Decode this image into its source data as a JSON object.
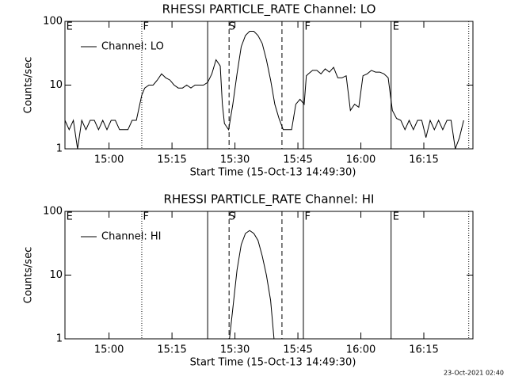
{
  "chart_data": [
    {
      "type": "line",
      "title": "RHESSI PARTICLE_RATE Channel: LO",
      "xlabel": "Start Time (15-Oct-13 14:49:30)",
      "ylabel": "Counts/sec",
      "log_y": true,
      "ylim": [
        1,
        100
      ],
      "yticks": [
        1,
        10,
        100
      ],
      "xlim": [
        0,
        97.2
      ],
      "xticks": [
        {
          "value": 10.5,
          "label": "15:00"
        },
        {
          "value": 25.5,
          "label": "15:15"
        },
        {
          "value": 40.5,
          "label": "15:30"
        },
        {
          "value": 55.5,
          "label": "15:45"
        },
        {
          "value": 70.5,
          "label": "16:00"
        },
        {
          "value": 85.5,
          "label": "16:15"
        }
      ],
      "vlines": [
        {
          "x": 18.3,
          "style": "dotted"
        },
        {
          "x": 34.0,
          "style": "solid"
        },
        {
          "x": 39.1,
          "style": "dashed"
        },
        {
          "x": 51.7,
          "style": "dashed"
        },
        {
          "x": 56.8,
          "style": "solid"
        },
        {
          "x": 77.7,
          "style": "solid"
        },
        {
          "x": 96.2,
          "style": "dotted"
        }
      ],
      "flags": [
        {
          "x": 0.3,
          "label": "E"
        },
        {
          "x": 18.6,
          "label": "F"
        },
        {
          "x": 39.0,
          "label": "S"
        },
        {
          "x": 57.1,
          "label": "F"
        },
        {
          "x": 78.1,
          "label": "E"
        }
      ],
      "x": [
        0,
        1,
        2,
        3,
        4,
        5,
        6,
        7,
        8,
        9,
        10,
        11,
        12,
        13,
        14,
        15,
        16,
        17,
        18.3,
        19,
        20,
        21,
        22,
        23,
        24,
        25,
        26,
        27,
        28,
        29,
        30,
        31,
        32,
        33,
        34,
        35,
        36,
        37,
        37.5,
        38,
        39,
        40,
        41,
        42,
        43,
        44,
        45,
        46,
        47,
        48,
        49,
        50,
        51,
        52,
        53,
        54,
        55,
        56,
        57,
        57.5,
        58,
        59,
        60,
        61,
        62,
        63,
        64,
        65,
        66,
        67,
        68,
        69,
        70,
        71,
        72,
        73,
        74,
        75,
        76,
        77,
        78,
        79,
        80,
        81,
        82,
        83,
        84,
        85,
        86,
        87,
        88,
        89,
        90,
        91,
        92,
        93,
        94,
        95
      ],
      "series": [
        {
          "name": "Channel: LO",
          "color": "#000000",
          "values": [
            2.8,
            2,
            2.8,
            1,
            2.8,
            2,
            2.8,
            2.8,
            2,
            2.8,
            2,
            2.8,
            2.8,
            2,
            2,
            2,
            2.8,
            2.8,
            7,
            9,
            10,
            10,
            12,
            15,
            13,
            12,
            10,
            9,
            9,
            10,
            9,
            10,
            10,
            10,
            11,
            15,
            25,
            20,
            5,
            2.5,
            2,
            5,
            15,
            40,
            60,
            70,
            70,
            60,
            45,
            25,
            12,
            5,
            3,
            2,
            2,
            2,
            5,
            6,
            5,
            14,
            15,
            17,
            17,
            15,
            18,
            16,
            19,
            13,
            13,
            14,
            4,
            5,
            4.5,
            14,
            15,
            17,
            16,
            16,
            15,
            13,
            4,
            3,
            2.8,
            2,
            2.8,
            2,
            2.8,
            2.8,
            1.5,
            2.8,
            2,
            2.8,
            2,
            2.8,
            2.8,
            1,
            1.5,
            2.8
          ]
        }
      ]
    },
    {
      "type": "line",
      "title": "RHESSI PARTICLE_RATE Channel: HI",
      "xlabel": "Start Time (15-Oct-13 14:49:30)",
      "ylabel": "Counts/sec",
      "log_y": true,
      "ylim": [
        1,
        100
      ],
      "yticks": [
        1,
        10,
        100
      ],
      "xlim": [
        0,
        97.2
      ],
      "xticks": [
        {
          "value": 10.5,
          "label": "15:00"
        },
        {
          "value": 25.5,
          "label": "15:15"
        },
        {
          "value": 40.5,
          "label": "15:30"
        },
        {
          "value": 55.5,
          "label": "15:45"
        },
        {
          "value": 70.5,
          "label": "16:00"
        },
        {
          "value": 85.5,
          "label": "16:15"
        }
      ],
      "vlines": [
        {
          "x": 18.3,
          "style": "dotted"
        },
        {
          "x": 34.0,
          "style": "solid"
        },
        {
          "x": 39.1,
          "style": "dashed"
        },
        {
          "x": 51.7,
          "style": "dashed"
        },
        {
          "x": 56.8,
          "style": "solid"
        },
        {
          "x": 77.7,
          "style": "solid"
        },
        {
          "x": 96.2,
          "style": "dotted"
        }
      ],
      "flags": [
        {
          "x": 0.3,
          "label": "E"
        },
        {
          "x": 18.6,
          "label": "F"
        },
        {
          "x": 39.0,
          "label": "S"
        },
        {
          "x": 57.1,
          "label": "F"
        },
        {
          "x": 78.1,
          "label": "E"
        }
      ],
      "x": [
        39.2,
        40,
        41,
        42,
        43,
        44,
        45,
        46,
        47,
        48,
        49,
        49.8
      ],
      "series": [
        {
          "name": "Channel: HI",
          "color": "#000000",
          "values": [
            1,
            3,
            12,
            30,
            45,
            50,
            45,
            35,
            20,
            10,
            4,
            1
          ]
        }
      ]
    }
  ],
  "footer": "23-Oct-2021 02:40"
}
